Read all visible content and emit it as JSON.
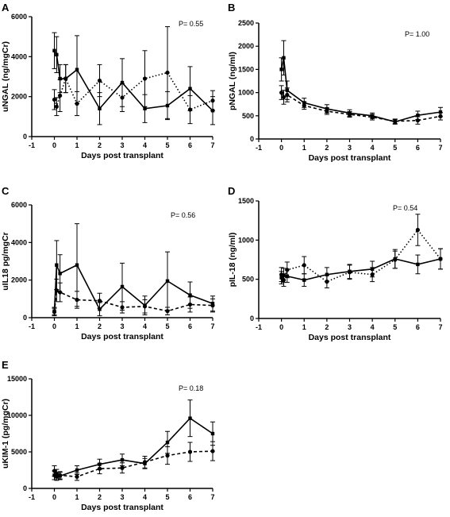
{
  "chart_data": [
    {
      "panel": "A",
      "type": "line",
      "xlabel": "Days post transplant",
      "ylabel": "uNGAL (ng/mgCr)",
      "xlim": [
        -1,
        7
      ],
      "ylim": [
        0,
        6000
      ],
      "xticks": [
        "-1",
        "0",
        "1",
        "2",
        "3",
        "4",
        "5",
        "6",
        "7"
      ],
      "yticks": [
        "0",
        "2000",
        "4000",
        "6000"
      ],
      "annotation": "P= 0.55",
      "series": [
        {
          "style": "solid",
          "x": [
            0,
            0.1,
            0.25,
            0.5,
            1,
            2,
            3,
            4,
            5,
            6,
            7
          ],
          "y": [
            4300,
            4100,
            2900,
            2900,
            3350,
            1400,
            2700,
            1400,
            1550,
            2400,
            1300
          ],
          "err": [
            900,
            900,
            700,
            700,
            1700,
            800,
            1200,
            700,
            700,
            1100,
            700
          ]
        },
        {
          "style": "dotted",
          "x": [
            0,
            0.1,
            0.25,
            0.5,
            1,
            2,
            3,
            4,
            5,
            6,
            7
          ],
          "y": [
            1850,
            1500,
            2050,
            2900,
            1650,
            2800,
            1950,
            2900,
            3200,
            1350,
            1800
          ],
          "err": [
            500,
            450,
            800,
            700,
            600,
            800,
            700,
            1400,
            2300,
            700,
            500
          ]
        }
      ]
    },
    {
      "panel": "B",
      "type": "line",
      "xlabel": "Days post transplant",
      "ylabel": "pNGAL (ng/ml)",
      "xlim": [
        -1,
        7
      ],
      "ylim": [
        0,
        2500
      ],
      "xticks": [
        "-1",
        "0",
        "1",
        "2",
        "3",
        "4",
        "5",
        "6",
        "7"
      ],
      "yticks": [
        "0",
        "500",
        "1000",
        "1500",
        "2000",
        "2500"
      ],
      "annotation": "P= 1.00",
      "series": [
        {
          "style": "solid",
          "x": [
            0,
            0.1,
            0.25,
            1,
            2,
            3,
            4,
            5,
            6,
            7
          ],
          "y": [
            1500,
            1750,
            1050,
            780,
            650,
            560,
            500,
            370,
            510,
            580
          ],
          "err": [
            250,
            370,
            200,
            100,
            90,
            70,
            60,
            50,
            90,
            100
          ]
        },
        {
          "style": "dashed",
          "x": [
            0,
            0.1,
            0.25,
            1,
            2,
            3,
            4,
            5,
            6,
            7
          ],
          "y": [
            1000,
            900,
            950,
            720,
            600,
            530,
            470,
            380,
            400,
            490
          ],
          "err": [
            150,
            150,
            150,
            80,
            70,
            60,
            60,
            50,
            80,
            80
          ]
        }
      ]
    },
    {
      "panel": "C",
      "type": "line",
      "xlabel": "Days post transplant",
      "ylabel": "uIL18 pg/mgCr",
      "xlim": [
        -1,
        7
      ],
      "ylim": [
        0,
        6000
      ],
      "xticks": [
        "-1",
        "0",
        "1",
        "2",
        "3",
        "4",
        "5",
        "6",
        "7"
      ],
      "yticks": [
        "0",
        "2000",
        "4000",
        "6000"
      ],
      "annotation": "P= 0.56",
      "series": [
        {
          "style": "solid",
          "x": [
            0,
            0.1,
            0.25,
            1,
            2,
            3,
            4,
            5,
            6,
            7
          ],
          "y": [
            350,
            2800,
            2350,
            2800,
            450,
            1650,
            650,
            1950,
            1200,
            750
          ],
          "err": [
            200,
            1300,
            1000,
            2200,
            350,
            1250,
            500,
            1550,
            700,
            400
          ]
        },
        {
          "style": "dashed",
          "x": [
            0,
            0.1,
            0.25,
            1,
            2,
            3,
            4,
            5,
            6,
            7
          ],
          "y": [
            300,
            1450,
            1350,
            950,
            900,
            550,
            600,
            350,
            700,
            650
          ],
          "err": [
            200,
            600,
            500,
            450,
            400,
            300,
            350,
            200,
            400,
            350
          ]
        }
      ]
    },
    {
      "panel": "D",
      "type": "line",
      "xlabel": "Days post transplant",
      "ylabel": "pIL-18 (ng/ml)",
      "xlim": [
        -1,
        7
      ],
      "ylim": [
        0,
        1500
      ],
      "xticks": [
        "-1",
        "0",
        "1",
        "2",
        "3",
        "4",
        "5",
        "6",
        "7"
      ],
      "yticks": [
        "0",
        "500",
        "1000",
        "1500"
      ],
      "annotation": "P= 0.54",
      "series": [
        {
          "style": "solid",
          "x": [
            0,
            0.1,
            0.25,
            1,
            2,
            3,
            4,
            5,
            6,
            7
          ],
          "y": [
            520,
            550,
            540,
            490,
            560,
            600,
            630,
            760,
            690,
            760
          ],
          "err": [
            80,
            90,
            80,
            80,
            90,
            90,
            100,
            120,
            120,
            130
          ]
        },
        {
          "style": "dotted",
          "x": [
            0,
            0.1,
            0.25,
            1,
            2,
            3,
            4,
            5,
            6,
            7
          ],
          "y": [
            560,
            490,
            620,
            680,
            470,
            590,
            560,
            750,
            1130,
            760
          ],
          "err": [
            90,
            80,
            100,
            110,
            80,
            90,
            90,
            110,
            200,
            130
          ]
        }
      ]
    },
    {
      "panel": "E",
      "type": "line",
      "xlabel": "Days post transplant",
      "ylabel": "uKIM-1 (pg/mgCr)",
      "xlim": [
        -1,
        7
      ],
      "ylim": [
        0,
        15000
      ],
      "xticks": [
        "-1",
        "0",
        "1",
        "2",
        "3",
        "4",
        "5",
        "6",
        "7"
      ],
      "yticks": [
        "0",
        "5000",
        "10000",
        "15000"
      ],
      "annotation": "P= 0.18",
      "series": [
        {
          "style": "solid",
          "x": [
            0,
            0.1,
            0.25,
            1,
            2,
            3,
            4,
            5,
            6,
            7
          ],
          "y": [
            1800,
            1600,
            1700,
            2500,
            3300,
            3900,
            3400,
            6300,
            9600,
            7500
          ],
          "err": [
            600,
            500,
            500,
            600,
            700,
            800,
            700,
            1500,
            2500,
            1600
          ]
        },
        {
          "style": "dashed",
          "x": [
            0,
            0.1,
            0.25,
            1,
            2,
            3,
            4,
            5,
            6,
            7
          ],
          "y": [
            2400,
            2000,
            1800,
            1600,
            2700,
            2800,
            3600,
            4500,
            5000,
            5100
          ],
          "err": [
            700,
            600,
            500,
            500,
            700,
            700,
            800,
            1200,
            1300,
            1300
          ]
        }
      ]
    }
  ]
}
